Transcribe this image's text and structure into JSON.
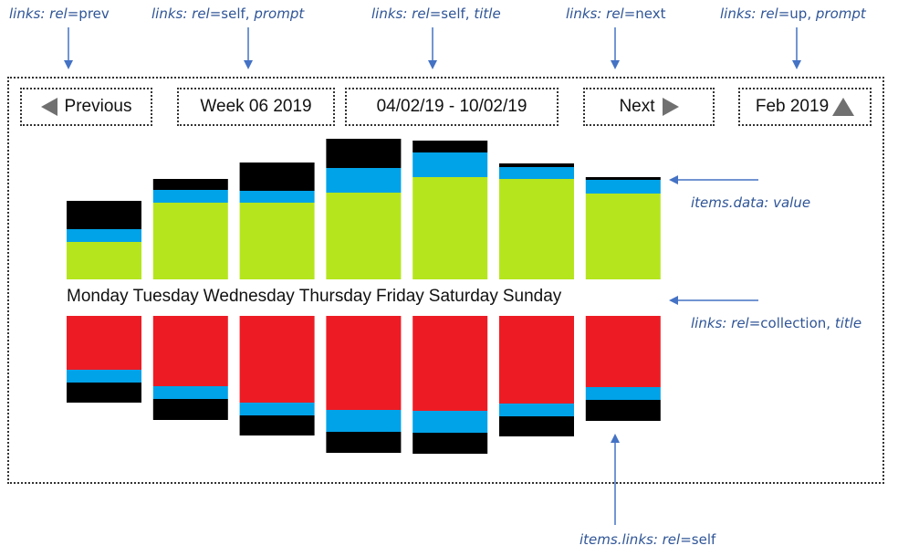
{
  "annotations": [
    {
      "id": "prev",
      "prefix": "links: rel",
      "eq": "=prev",
      "suffix": ""
    },
    {
      "id": "self_prompt",
      "prefix": "links: rel",
      "eq": "=self, ",
      "suffix": "prompt"
    },
    {
      "id": "self_title",
      "prefix": "links: rel",
      "eq": "=self, ",
      "suffix": "title"
    },
    {
      "id": "next",
      "prefix": "links: rel",
      "eq": "=next",
      "suffix": ""
    },
    {
      "id": "up",
      "prefix": "links: rel",
      "eq": "=up, ",
      "suffix": "prompt"
    },
    {
      "id": "value",
      "prefix": "items.data: value",
      "eq": "",
      "suffix": ""
    },
    {
      "id": "collection",
      "prefix": "links: rel",
      "eq": "=collection, ",
      "suffix": "title"
    },
    {
      "id": "item_self",
      "prefix": "items.links: rel",
      "eq": "=self",
      "suffix": ""
    }
  ],
  "nav": {
    "previous": "Previous",
    "week": "Week 06 2019",
    "range": "04/02/19 - 10/02/19",
    "next": "Next",
    "month": "Feb 2019"
  },
  "days": [
    "Monday",
    "Tuesday",
    "Wednesday",
    "Thursday",
    "Friday",
    "Saturday",
    "Sunday"
  ],
  "colors": {
    "green": "#b5e61d",
    "blue": "#00a2e8",
    "black": "#000000",
    "red": "#ed1c24",
    "annotation": "#2f5597",
    "arrow": "#4472c4",
    "nav_icon": "#707070"
  },
  "upper_stacks": [
    {
      "green": 41,
      "blue": 14,
      "black": 31
    },
    {
      "green": 84,
      "blue": 14,
      "black": 12
    },
    {
      "green": 84,
      "blue": 13,
      "black": 31
    },
    {
      "green": 95,
      "blue": 27,
      "black": 32
    },
    {
      "green": 112,
      "blue": 27,
      "black": 13
    },
    {
      "green": 110,
      "blue": 13,
      "black": 4
    },
    {
      "green": 94,
      "blue": 15,
      "black": 3
    }
  ],
  "lower_stacks": [
    {
      "red": 59,
      "blue": 14,
      "black": 22
    },
    {
      "red": 77,
      "blue": 14,
      "black": 23
    },
    {
      "red": 95,
      "blue": 14,
      "black": 22
    },
    {
      "red": 103,
      "blue": 24,
      "black": 23
    },
    {
      "red": 104,
      "blue": 24,
      "black": 23
    },
    {
      "red": 96,
      "blue": 14,
      "black": 22
    },
    {
      "red": 78,
      "blue": 14,
      "black": 23
    }
  ]
}
